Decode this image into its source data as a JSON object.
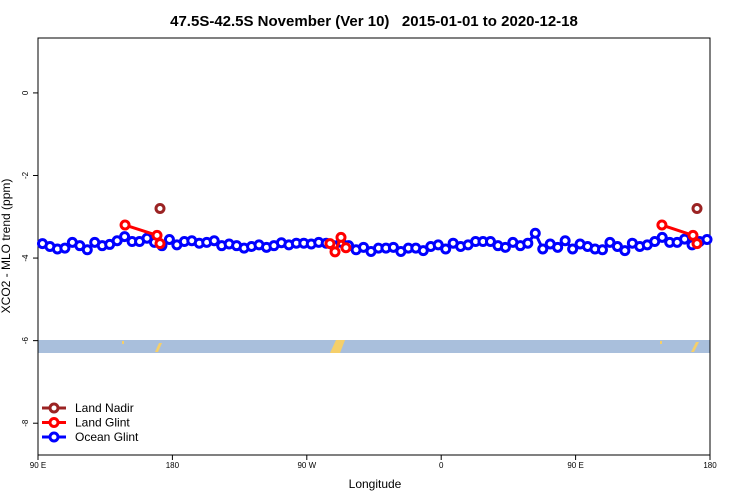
{
  "chart_data": {
    "type": "line",
    "title": "47.5S-42.5S November (Ver 10)   2015-01-01 to 2020-12-18",
    "xlabel": "Longitude",
    "ylabel": "XCO2 - MLO trend (ppm)",
    "xlim": [
      90,
      540
    ],
    "ylim": [
      -8.77,
      1.33
    ],
    "xticks": [
      {
        "value": 90,
        "label": "90 E"
      },
      {
        "value": 180,
        "label": "180"
      },
      {
        "value": 270,
        "label": "90 W"
      },
      {
        "value": 360,
        "label": "0"
      },
      {
        "value": 450,
        "label": "90 E"
      },
      {
        "value": 540,
        "label": "180"
      }
    ],
    "yticks": [
      0,
      -2,
      -4,
      -6,
      -8
    ],
    "legend": "bottom-left",
    "series": [
      {
        "name": "Land Nadir",
        "color": "#9b2323",
        "x": [
          171.7,
          351,
          531.3
        ],
        "values": [
          -2.8,
          null,
          -2.8
        ]
      },
      {
        "name": "Land Glint",
        "color": "#ff0000",
        "x": [
          148.3,
          169.7,
          171.7,
          230,
          285.5,
          288.9,
          292.9,
          296.2,
          400,
          507.8,
          528.6,
          531.3
        ],
        "values": [
          -3.2,
          -3.45,
          -3.65,
          null,
          -3.65,
          -3.85,
          -3.5,
          -3.75,
          null,
          -3.2,
          -3.45,
          -3.65
        ]
      },
      {
        "name": "Ocean Glint",
        "color": "#0000ff",
        "x": [
          93,
          98,
          103,
          108,
          113,
          118,
          123,
          128,
          133,
          138,
          143,
          148,
          153,
          158,
          163,
          168,
          173,
          178,
          183,
          188,
          193,
          198,
          203,
          208,
          213,
          218,
          223,
          228,
          233,
          238,
          243,
          248,
          253,
          258,
          263,
          268,
          273,
          278,
          283,
          288,
          293,
          298,
          303,
          308,
          313,
          318,
          323,
          328,
          333,
          338,
          343,
          348,
          353,
          358,
          363,
          368,
          373,
          378,
          383,
          388,
          393,
          398,
          403,
          408,
          413,
          418,
          423,
          428,
          433,
          438,
          443,
          448,
          453,
          458,
          463,
          468,
          473,
          478,
          483,
          488,
          493,
          498,
          503,
          508,
          513,
          518,
          523,
          528,
          533,
          538
        ],
        "values": [
          -3.65,
          -3.72,
          -3.78,
          -3.76,
          -3.62,
          -3.7,
          -3.8,
          -3.62,
          -3.7,
          -3.67,
          -3.58,
          -3.48,
          -3.6,
          -3.6,
          -3.52,
          -3.62,
          -3.7,
          -3.55,
          -3.68,
          -3.6,
          -3.58,
          -3.64,
          -3.62,
          -3.58,
          -3.7,
          -3.66,
          -3.7,
          -3.76,
          -3.72,
          -3.68,
          -3.74,
          -3.7,
          -3.63,
          -3.68,
          -3.64,
          -3.64,
          -3.66,
          -3.62,
          -3.64,
          -3.7,
          -3.62,
          -3.7,
          -3.8,
          -3.74,
          -3.84,
          -3.76,
          -3.76,
          -3.74,
          -3.84,
          -3.76,
          -3.76,
          -3.82,
          -3.72,
          -3.68,
          -3.78,
          -3.64,
          -3.72,
          -3.68,
          -3.6,
          -3.6,
          -3.6,
          -3.7,
          -3.74,
          -3.62,
          -3.7,
          -3.64,
          -3.4,
          -3.78,
          -3.66,
          -3.74,
          -3.58,
          -3.78,
          -3.66,
          -3.72,
          -3.78,
          -3.8,
          -3.62,
          -3.72,
          -3.82,
          -3.64,
          -3.72,
          -3.68,
          -3.6,
          -3.5,
          -3.62,
          -3.62,
          -3.54,
          -3.68,
          -3.6,
          -3.55
        ]
      }
    ]
  }
}
